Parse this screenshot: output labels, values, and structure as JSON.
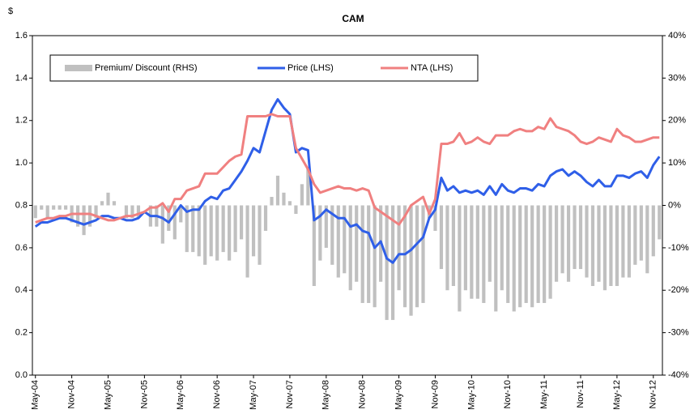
{
  "chart_data": {
    "type": "combo",
    "title": "CAM",
    "y_label": "$",
    "categories": [
      "May-04",
      null,
      null,
      null,
      null,
      null,
      "Nov-04",
      null,
      null,
      null,
      null,
      null,
      "May-05",
      null,
      null,
      null,
      null,
      null,
      "Nov-05",
      null,
      null,
      null,
      null,
      null,
      "May-06",
      null,
      null,
      null,
      null,
      null,
      "Nov-06",
      null,
      null,
      null,
      null,
      null,
      "May-07",
      null,
      null,
      null,
      null,
      null,
      "Nov-07",
      null,
      null,
      null,
      null,
      null,
      "May-08",
      null,
      null,
      null,
      null,
      null,
      "Nov-08",
      null,
      null,
      null,
      null,
      null,
      "May-09",
      null,
      null,
      null,
      null,
      null,
      "Nov-09",
      null,
      null,
      null,
      null,
      null,
      "May-10",
      null,
      null,
      null,
      null,
      null,
      "Nov-10",
      null,
      null,
      null,
      null,
      null,
      "May-11",
      null,
      null,
      null,
      null,
      null,
      "Nov-11",
      null,
      null,
      null,
      null,
      null,
      "May-12",
      null,
      null,
      null,
      null,
      null,
      "Nov-12",
      null
    ],
    "series": [
      {
        "name": "Premium/ Discount (RHS)",
        "type": "bar",
        "axis": "y2",
        "color": "#c0c0c0",
        "values": [
          -3,
          -1,
          -3,
          -1,
          -1,
          -1,
          -4,
          -5,
          -7,
          -5,
          -3,
          1,
          3,
          1,
          0,
          -3,
          -3,
          -3,
          0,
          -5,
          -5,
          -9,
          -6,
          -8,
          -4,
          -11,
          -11,
          -12,
          -14,
          -12,
          -13,
          -11,
          -13,
          -11,
          -8,
          -17,
          -12,
          -14,
          -6,
          2,
          7,
          3,
          1,
          -2,
          5,
          9,
          -19,
          -13,
          -10,
          -14,
          -17,
          -16,
          -20,
          -18,
          -23,
          -23,
          -24,
          -18,
          -27,
          -27,
          -20,
          -24,
          -26,
          -24,
          -23,
          -3,
          -6,
          -15,
          -20,
          -19,
          -25,
          -20,
          -22,
          -22,
          -23,
          -18,
          -25,
          -20,
          -23,
          -25,
          -24,
          -23,
          -24,
          -23,
          -23,
          -22,
          -18,
          -16,
          -18,
          -15,
          -15,
          -17,
          -19,
          -18,
          -20,
          -19,
          -19,
          -17,
          -17,
          -14,
          -13,
          -16,
          -12,
          -8
        ]
      },
      {
        "name": "Price (LHS)",
        "type": "line",
        "color": "#2f5fe8",
        "values": [
          0.7,
          0.72,
          0.72,
          0.73,
          0.74,
          0.74,
          0.73,
          0.72,
          0.71,
          0.72,
          0.73,
          0.75,
          0.75,
          0.74,
          0.74,
          0.73,
          0.73,
          0.74,
          0.77,
          0.75,
          0.75,
          0.74,
          0.72,
          0.76,
          0.8,
          0.77,
          0.78,
          0.78,
          0.82,
          0.84,
          0.83,
          0.87,
          0.88,
          0.92,
          0.96,
          1.01,
          1.07,
          1.05,
          1.15,
          1.25,
          1.3,
          1.26,
          1.23,
          1.05,
          1.07,
          1.06,
          0.73,
          0.75,
          0.78,
          0.76,
          0.74,
          0.74,
          0.7,
          0.71,
          0.68,
          0.67,
          0.6,
          0.63,
          0.55,
          0.53,
          0.57,
          0.57,
          0.59,
          0.62,
          0.65,
          0.74,
          0.78,
          0.93,
          0.87,
          0.89,
          0.86,
          0.87,
          0.86,
          0.87,
          0.85,
          0.89,
          0.85,
          0.9,
          0.87,
          0.86,
          0.88,
          0.88,
          0.87,
          0.9,
          0.89,
          0.94,
          0.96,
          0.97,
          0.94,
          0.96,
          0.94,
          0.91,
          0.89,
          0.92,
          0.89,
          0.89,
          0.94,
          0.94,
          0.93,
          0.95,
          0.96,
          0.93,
          0.99,
          1.03
        ]
      },
      {
        "name": "NTA (LHS)",
        "type": "line",
        "color": "#f08080",
        "values": [
          0.72,
          0.73,
          0.74,
          0.74,
          0.75,
          0.75,
          0.76,
          0.76,
          0.76,
          0.76,
          0.75,
          0.74,
          0.73,
          0.73,
          0.74,
          0.75,
          0.75,
          0.76,
          0.77,
          0.79,
          0.79,
          0.81,
          0.77,
          0.83,
          0.83,
          0.87,
          0.88,
          0.89,
          0.95,
          0.95,
          0.95,
          0.98,
          1.01,
          1.03,
          1.04,
          1.22,
          1.22,
          1.22,
          1.22,
          1.23,
          1.22,
          1.22,
          1.22,
          1.07,
          1.02,
          0.97,
          0.9,
          0.86,
          0.87,
          0.88,
          0.89,
          0.88,
          0.88,
          0.87,
          0.88,
          0.87,
          0.79,
          0.77,
          0.75,
          0.73,
          0.71,
          0.75,
          0.8,
          0.82,
          0.84,
          0.76,
          0.83,
          1.09,
          1.09,
          1.1,
          1.14,
          1.09,
          1.1,
          1.12,
          1.1,
          1.09,
          1.13,
          1.13,
          1.13,
          1.15,
          1.16,
          1.15,
          1.15,
          1.17,
          1.16,
          1.21,
          1.17,
          1.16,
          1.15,
          1.13,
          1.1,
          1.09,
          1.1,
          1.12,
          1.11,
          1.1,
          1.16,
          1.13,
          1.12,
          1.1,
          1.1,
          1.11,
          1.12,
          1.12
        ]
      }
    ],
    "ylim": [
      0,
      1.6
    ],
    "yticks": [
      {
        "value": 0,
        "label": "0.0"
      },
      {
        "value": 0.2,
        "label": "0.2"
      },
      {
        "value": 0.4,
        "label": "0.4"
      },
      {
        "value": 0.6,
        "label": "0.6"
      },
      {
        "value": 0.8,
        "label": "0.8"
      },
      {
        "value": 1.0,
        "label": "1.0"
      },
      {
        "value": 1.2,
        "label": "1.2"
      },
      {
        "value": 1.4,
        "label": "1.4"
      },
      {
        "value": 1.6,
        "label": "1.6"
      }
    ],
    "y2lim": [
      -40,
      40
    ],
    "y2ticks": [
      {
        "value": -40,
        "label": "-40%"
      },
      {
        "value": -30,
        "label": "-30%"
      },
      {
        "value": -20,
        "label": "-20%"
      },
      {
        "value": -10,
        "label": "-10%"
      },
      {
        "value": 0,
        "label": "0%"
      },
      {
        "value": 10,
        "label": "10%"
      },
      {
        "value": 20,
        "label": "20%"
      },
      {
        "value": 30,
        "label": "30%"
      },
      {
        "value": 40,
        "label": "40%"
      }
    ],
    "grid": false
  }
}
